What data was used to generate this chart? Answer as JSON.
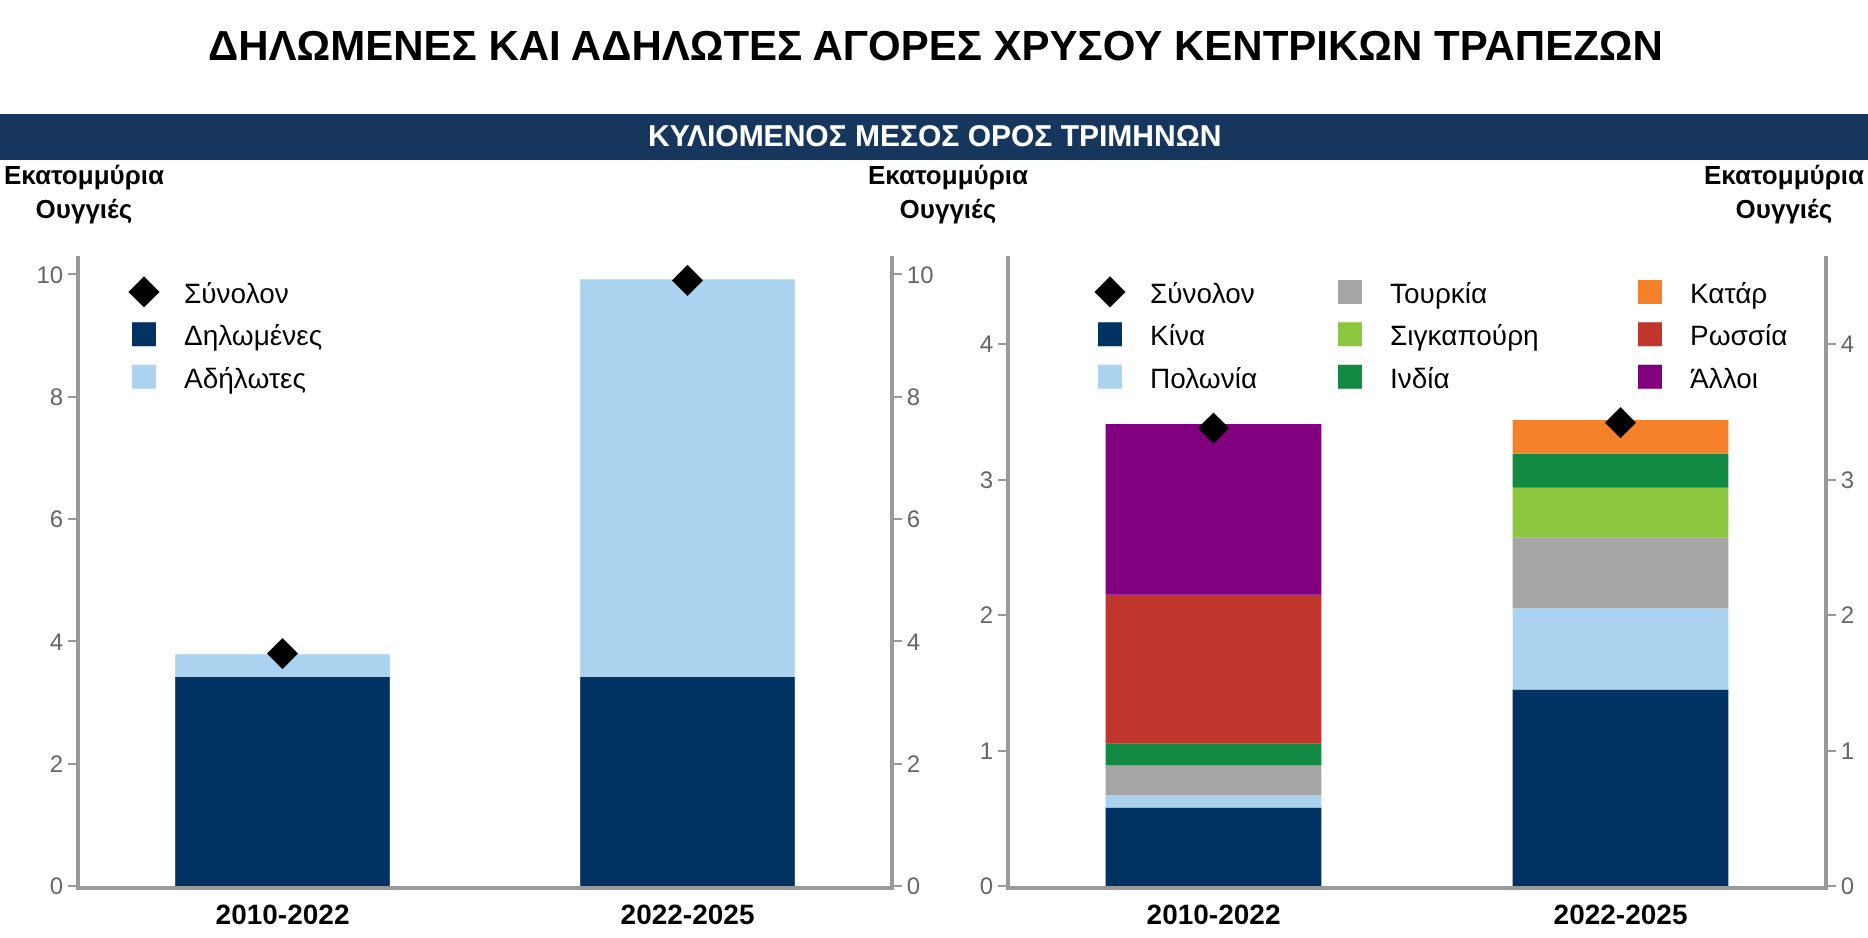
{
  "chart_data": [
    {
      "type": "bar",
      "title": "ΔΗΛΩΜΕΝΕΣ ΚΑΙ ΑΔΗΛΩΤΕΣ ΑΓΟΡΕΣ ΧΡΥΣΟΥ ΚΕΝΤΡΙΚΩΝ ΤΡΑΠΕΖΩΝ",
      "subtitle": "ΚΥΛΙΟΜΕΝΟΣ ΜΕΣΟΣ ΟΡΟΣ ΤΡΙΜΗΝΩΝ",
      "ylabel": "Εκατομμύρια\nΟυγγιές",
      "y2label": "Εκατομμύρια\nΟυγγιές",
      "stacked": true,
      "categories": [
        "2010-2022",
        "2022-2025"
      ],
      "series": [
        {
          "name": "Σύνολον",
          "type": "scatter",
          "marker": "diamond",
          "color": "#000000",
          "x": [
            "2010-2022",
            "2022-2025"
          ],
          "values": [
            3.8,
            9.9
          ]
        },
        {
          "name": "Δηλωμένες",
          "color": "#003361",
          "values": [
            3.42,
            3.42
          ]
        },
        {
          "name": "Αδήλωτες",
          "color": "#abd3ef",
          "values": [
            0.37,
            6.5
          ]
        }
      ],
      "ylim": [
        0,
        10.3
      ],
      "yticks": [
        0,
        2,
        4,
        6,
        8,
        10
      ],
      "y2lim": [
        0,
        10.3
      ],
      "y2ticks": [
        0,
        2,
        4,
        6,
        8,
        10
      ],
      "legend": "top left"
    },
    {
      "type": "bar",
      "y2label": "Εκατομμύρια\nΟυγγιές",
      "stacked": true,
      "categories": [
        "2010-2022",
        "2022-2025"
      ],
      "series": [
        {
          "name": "Σύνολον",
          "type": "scatter",
          "marker": "diamond",
          "color": "#000000",
          "x": [
            "2010-2022",
            "2022-2025"
          ],
          "values": [
            3.38,
            3.42
          ]
        },
        {
          "name": "Κίνα",
          "color": "#003361",
          "values": [
            0.58,
            1.45
          ]
        },
        {
          "name": "Πολωνία",
          "color": "#abd3ef",
          "values": [
            0.09,
            0.6
          ]
        },
        {
          "name": "Τουρκία",
          "color": "#a6a6a6",
          "values": [
            0.22,
            0.52
          ]
        },
        {
          "name": "Σιγκαπούρη",
          "color": "#8dc63f",
          "values": [
            0,
            0.37
          ]
        },
        {
          "name": "Ινδία",
          "color": "#138a43",
          "values": [
            0.16,
            0.25
          ]
        },
        {
          "name": "Κατάρ",
          "color": "#f5822a",
          "values": [
            0,
            0.25
          ]
        },
        {
          "name": "Ρωσσία",
          "color": "#c0362c",
          "values": [
            1.1,
            0
          ]
        },
        {
          "name": "Άλλοι",
          "color": "#800080",
          "values": [
            1.26,
            0
          ]
        }
      ],
      "ylim": [
        0,
        4.65
      ],
      "yticks": [
        0,
        1,
        2,
        3,
        4
      ],
      "y2lim": [
        0,
        4.65
      ],
      "y2ticks": [
        0,
        1,
        2,
        3,
        4
      ],
      "legend": "top"
    }
  ]
}
